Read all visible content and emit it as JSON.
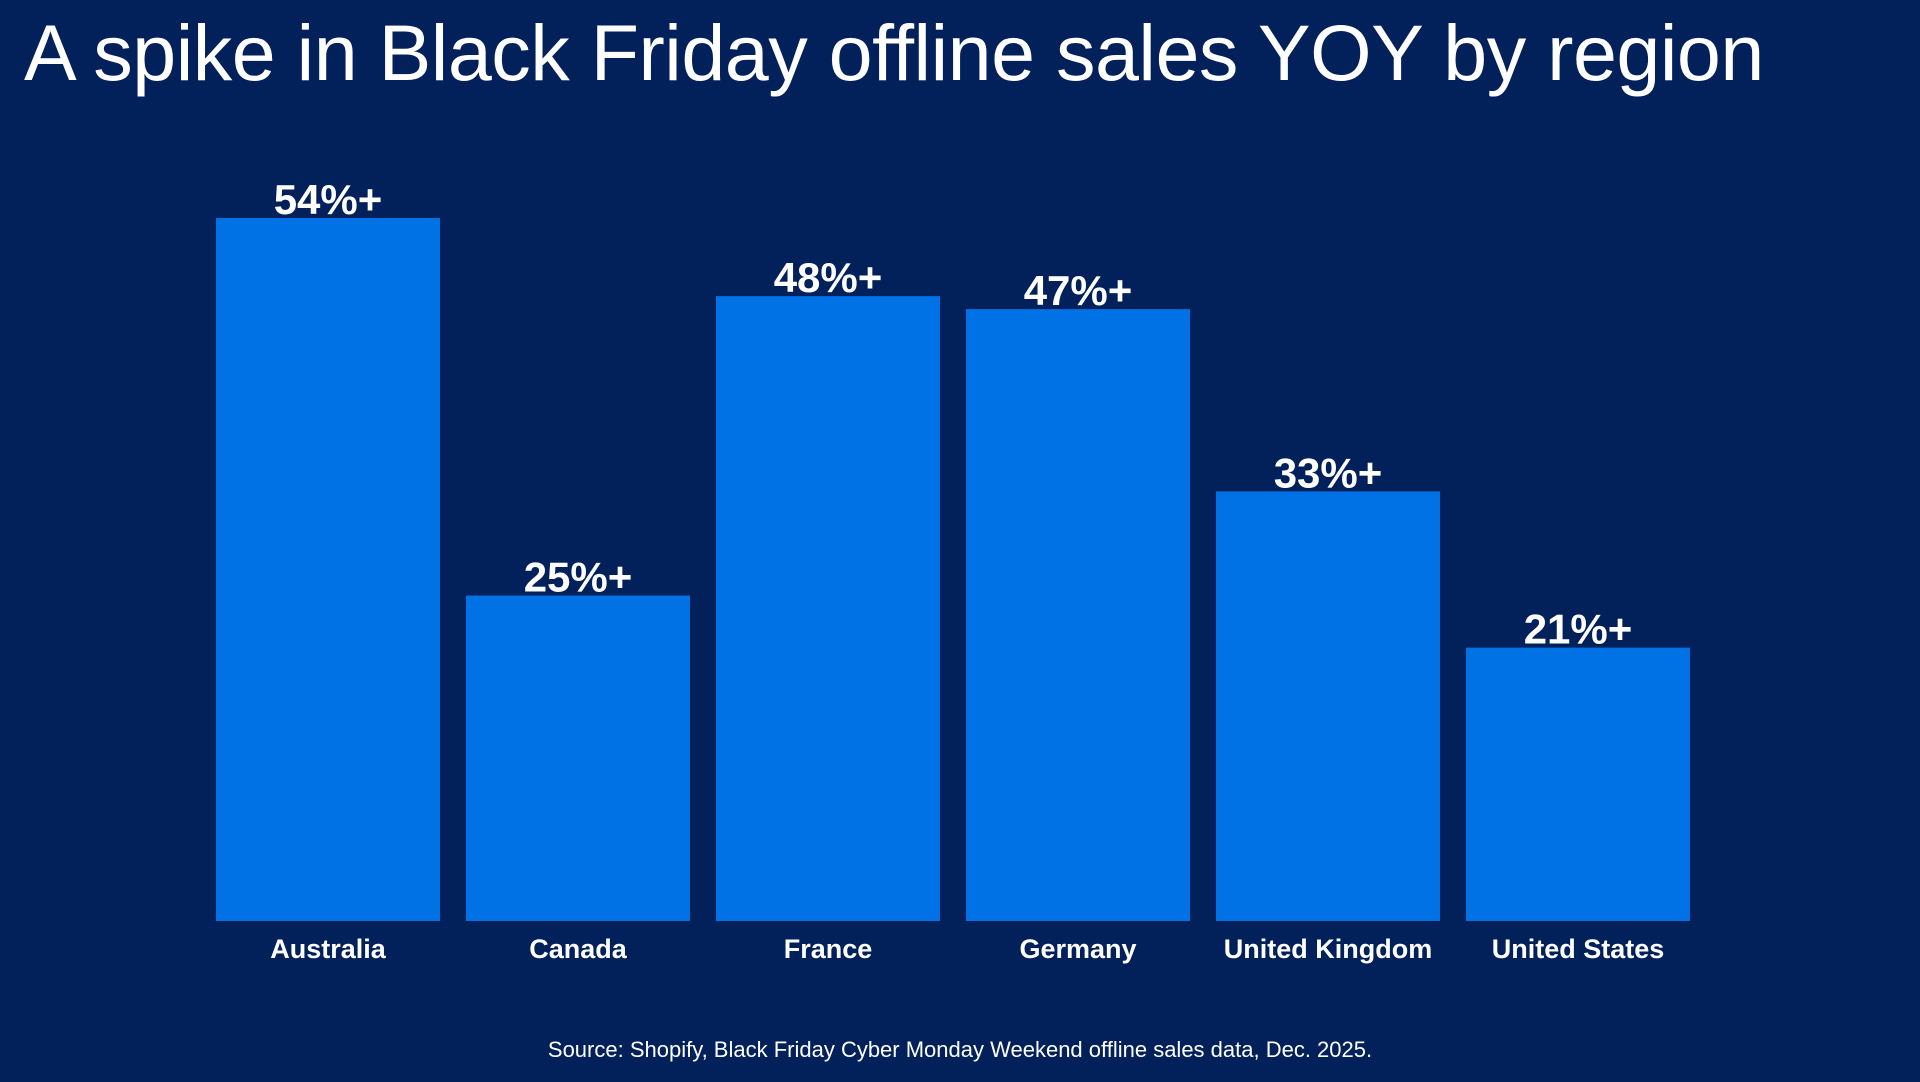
{
  "chart_data": {
    "type": "bar",
    "title": "A spike in Black Friday offline sales YOY by region",
    "categories": [
      "Australia",
      "Canada",
      "France",
      "Germany",
      "United Kingdom",
      "United States"
    ],
    "values": [
      54,
      25,
      48,
      47,
      33,
      21
    ],
    "value_labels": [
      "54%+",
      "25%+",
      "48%+",
      "47%+",
      "33%+",
      "21%+"
    ],
    "ylim": [
      0,
      54
    ],
    "grid": false,
    "legend": "none",
    "bar_color": "#0072E5",
    "background_color": "#02215B",
    "source": "Source: Shopify, Black Friday Cyber Monday Weekend offline sales data, Dec. 2025."
  }
}
